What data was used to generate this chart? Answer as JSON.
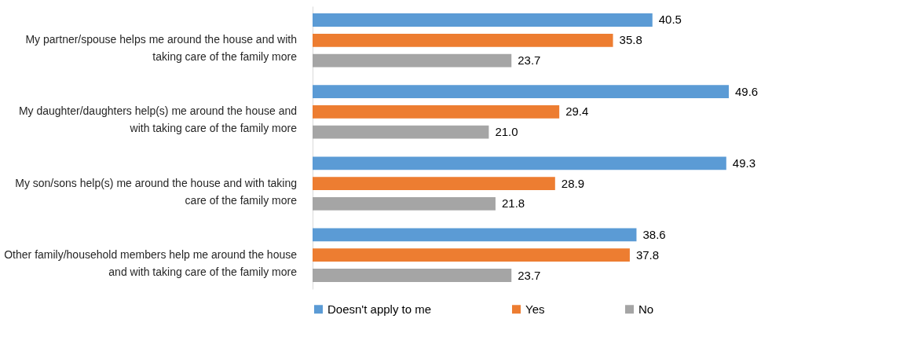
{
  "chart_data": {
    "type": "bar",
    "orientation": "horizontal",
    "categories": [
      "My partner/spouse helps me around the house and with taking care of the family more",
      "My daughter/daughters help(s) me around the house and with taking care of the family more",
      "My son/sons help(s) me around the house and with taking care of the family more",
      "Other family/household members help me around the house and with taking care of the family more"
    ],
    "series": [
      {
        "name": "Doesn't apply to me",
        "color": "#5b9bd5",
        "values": [
          40.5,
          49.6,
          49.3,
          38.6
        ]
      },
      {
        "name": "Yes",
        "color": "#ed7d31",
        "values": [
          35.8,
          29.4,
          28.9,
          37.8
        ]
      },
      {
        "name": "No",
        "color": "#a5a5a5",
        "values": [
          23.7,
          21.0,
          21.8,
          23.7
        ],
        "value_labels": [
          "23.7",
          "21.0",
          "21.8",
          "23.7"
        ]
      }
    ],
    "data_labels": true,
    "legend": "bottom",
    "grid": false
  }
}
